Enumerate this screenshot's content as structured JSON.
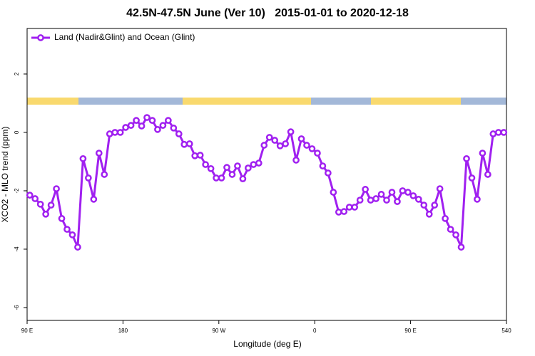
{
  "chart_data": {
    "type": "line",
    "title": "42.5N-47.5N June (Ver 10)   2015-01-01 to 2020-12-18",
    "x_label": "Longitude (deg E)",
    "y_label": "XCO2 - MLO trend (ppm)",
    "x": [
      92.5,
      97.5,
      102.5,
      107.5,
      112.5,
      117.5,
      122.5,
      127.5,
      132.5,
      137.5,
      142.5,
      147.5,
      152.5,
      157.5,
      162.5,
      167.5,
      172.5,
      177.5,
      182.5,
      187.5,
      192.5,
      197.5,
      202.5,
      207.5,
      212.5,
      217.5,
      222.5,
      227.5,
      232.5,
      237.5,
      242.5,
      247.5,
      252.5,
      257.5,
      262.5,
      267.5,
      272.5,
      277.5,
      282.5,
      287.5,
      292.5,
      297.5,
      302.5,
      307.5,
      312.5,
      317.5,
      322.5,
      327.5,
      332.5,
      337.5,
      342.5,
      347.5,
      352.5,
      357.5,
      362.5,
      367.5,
      372.5,
      377.5,
      382.5,
      387.5,
      392.5,
      397.5,
      402.5,
      407.5,
      412.5,
      417.5,
      422.5,
      427.5,
      432.5,
      437.5,
      442.5,
      447.5,
      452.5,
      457.5,
      462.5,
      467.5,
      472.5,
      477.5,
      482.5,
      487.5,
      492.5,
      497.5,
      502.5,
      507.5,
      512.5,
      517.5,
      522.5,
      527.5,
      532.5,
      537.5
    ],
    "series": [
      {
        "name": "Land (Nadir&Glint) and Ocean (Glint)",
        "color": "#a020f0",
        "values": [
          -2.15,
          -2.27,
          -2.46,
          -2.8,
          -2.49,
          -1.93,
          -2.95,
          -3.32,
          -3.51,
          -3.93,
          -0.9,
          -1.56,
          -2.29,
          -0.71,
          -1.44,
          -0.05,
          0,
          0,
          0.17,
          0.24,
          0.41,
          0.22,
          0.51,
          0.41,
          0.1,
          0.24,
          0.41,
          0.15,
          -0.05,
          -0.41,
          -0.39,
          -0.8,
          -0.78,
          -1.1,
          -1.24,
          -1.56,
          -1.56,
          -1.2,
          -1.44,
          -1.15,
          -1.59,
          -1.22,
          -1.1,
          -1.05,
          -0.44,
          -0.17,
          -0.27,
          -0.46,
          -0.39,
          0.02,
          -0.95,
          -0.22,
          -0.44,
          -0.56,
          -0.71,
          -1.15,
          -1.39,
          -2.05,
          -2.73,
          -2.71,
          -2.56,
          -2.56,
          -2.32,
          -1.95,
          -2.32,
          -2.27,
          -2.12,
          -2.32,
          -2.05,
          -2.37,
          -2,
          -2.05,
          -2.17,
          -2.29,
          -2.49,
          -2.8,
          -2.49,
          -1.93,
          -2.95,
          -3.32,
          -3.51,
          -3.93,
          -0.9,
          -1.56,
          -2.29,
          -0.71,
          -1.44,
          -0.05,
          0,
          0
        ]
      }
    ],
    "xlim": [
      90,
      540
    ],
    "xticks": [
      {
        "value": 90,
        "label": "90 E"
      },
      180,
      {
        "value": 270,
        "label": "90 W"
      },
      {
        "value": 360,
        "label": "0"
      },
      {
        "value": 450,
        "label": "90 E"
      },
      540
    ],
    "ylim": [
      -6.44,
      3.56
    ],
    "yticks": [
      -6,
      -4,
      -2,
      0,
      2
    ],
    "legend": "top-left"
  }
}
